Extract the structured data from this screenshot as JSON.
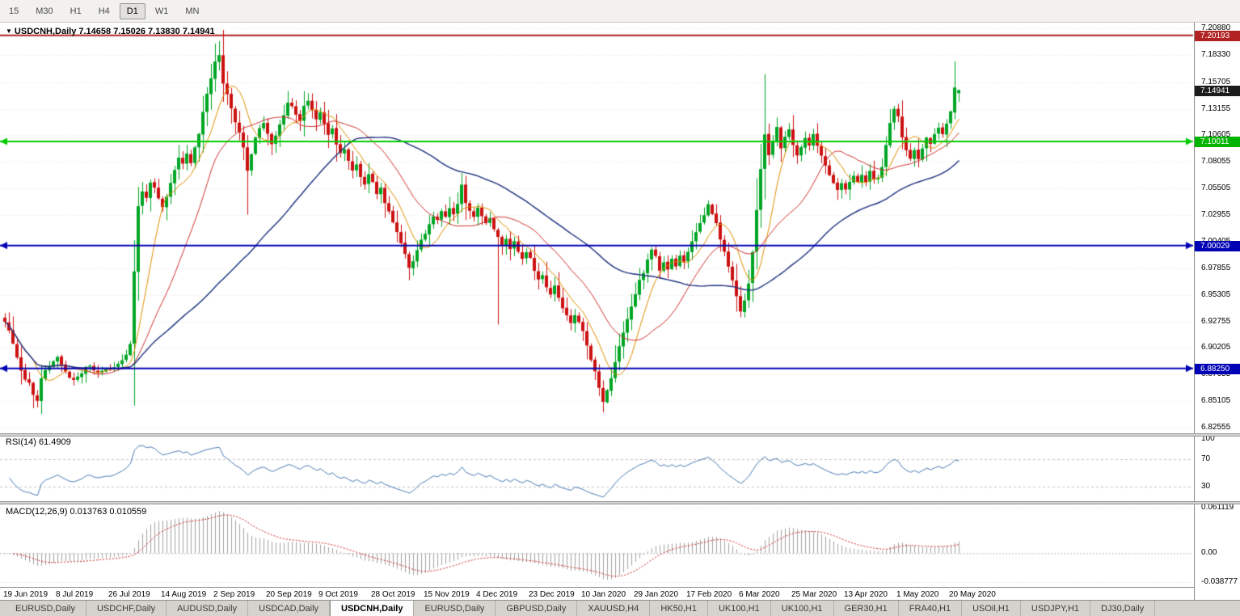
{
  "toolbar": {
    "timeframes": [
      {
        "label": "15",
        "active": false
      },
      {
        "label": "M30",
        "active": false
      },
      {
        "label": "H1",
        "active": false
      },
      {
        "label": "H4",
        "active": false
      },
      {
        "label": "D1",
        "active": true
      },
      {
        "label": "W1",
        "active": false
      },
      {
        "label": "MN",
        "active": false
      }
    ]
  },
  "chart": {
    "title": "USDCNH,Daily 7.14658 7.15026 7.13830 7.14941",
    "symbol": "USDCNH",
    "period": "Daily",
    "open": "7.14658",
    "high": "7.15026",
    "low": "7.13830",
    "close": "7.14941"
  },
  "price_scale": {
    "ticks": [
      "7.20880",
      "7.18330",
      "7.15705",
      "7.13155",
      "7.10605",
      "7.08055",
      "7.05505",
      "7.02955",
      "7.00405",
      "6.97855",
      "6.95305",
      "6.92755",
      "6.90205",
      "6.87655",
      "6.85105",
      "6.82555"
    ]
  },
  "badges": [
    {
      "text": "7.20193",
      "value": 7.20193,
      "color": "#b22222"
    },
    {
      "text": "7.14941",
      "value": 7.14941,
      "color": "#1c1c1c"
    },
    {
      "text": "7.10011",
      "value": 7.10011,
      "color": "#00b400"
    },
    {
      "text": "7.00029",
      "value": 7.00029,
      "color": "#0000b4"
    },
    {
      "text": "6.88250",
      "value": 6.8825,
      "color": "#0000b4"
    }
  ],
  "rsi": {
    "label": "RSI(14) 61.4909",
    "period": 14,
    "value": 61.4909,
    "line_color": "#4a7ab5",
    "scale": [
      {
        "text": "100",
        "value": 100
      },
      {
        "text": "70",
        "value": 70
      },
      {
        "text": "30",
        "value": 30
      }
    ]
  },
  "macd": {
    "label": "MACD(12,26,9) 0.013763 0.010559",
    "fast": 12,
    "slow": 26,
    "signal": 9,
    "macd_value": 0.013763,
    "signal_value": 0.010559,
    "hist_color": "#a2a2a2",
    "signal_color": "#cc2222",
    "scale": [
      {
        "text": "0.061119",
        "value": 0.061119
      },
      {
        "text": "0.00",
        "value": 0
      },
      {
        "text": "-0.038777",
        "value": -0.038777
      }
    ]
  },
  "time_axis": {
    "labels": [
      {
        "i": 0,
        "text": "19 Jun 2019"
      },
      {
        "i": 13,
        "text": "8 Jul 2019"
      },
      {
        "i": 26,
        "text": "26 Jul 2019"
      },
      {
        "i": 39,
        "text": "14 Aug 2019"
      },
      {
        "i": 52,
        "text": "2 Sep 2019"
      },
      {
        "i": 65,
        "text": "20 Sep 2019"
      },
      {
        "i": 78,
        "text": "9 Oct 2019"
      },
      {
        "i": 91,
        "text": "28 Oct 2019"
      },
      {
        "i": 104,
        "text": "15 Nov 2019"
      },
      {
        "i": 117,
        "text": "4 Dec 2019"
      },
      {
        "i": 130,
        "text": "23 Dec 2019"
      },
      {
        "i": 143,
        "text": "10 Jan 2020"
      },
      {
        "i": 156,
        "text": "29 Jan 2020"
      },
      {
        "i": 169,
        "text": "17 Feb 2020"
      },
      {
        "i": 182,
        "text": "6 Mar 2020"
      },
      {
        "i": 195,
        "text": "25 Mar 2020"
      },
      {
        "i": 208,
        "text": "13 Apr 2020"
      },
      {
        "i": 221,
        "text": "1 May 2020"
      },
      {
        "i": 234,
        "text": "20 May 2020"
      }
    ]
  },
  "tabs": [
    {
      "label": "EURUSD,Daily",
      "active": false
    },
    {
      "label": "USDCHF,Daily",
      "active": false
    },
    {
      "label": "AUDUSD,Daily",
      "active": false
    },
    {
      "label": "USDCAD,Daily",
      "active": false
    },
    {
      "label": "USDCNH,Daily",
      "active": true
    },
    {
      "label": "EURUSD,Daily",
      "active": false
    },
    {
      "label": "GBPUSD,Daily",
      "active": false
    },
    {
      "label": "XAUUSD,H4",
      "active": false
    },
    {
      "label": "HK50,H1",
      "active": false
    },
    {
      "label": "UK100,H1",
      "active": false
    },
    {
      "label": "UK100,H1",
      "active": false
    },
    {
      "label": "GER30,H1",
      "active": false
    },
    {
      "label": "FRA40,H1",
      "active": false
    },
    {
      "label": "USOil,H1",
      "active": false
    },
    {
      "label": "USDJPY,H1",
      "active": false
    },
    {
      "label": "DJ30,Daily",
      "active": false
    }
  ],
  "chart_data": {
    "type": "candlestick",
    "symbol": "USDCNH",
    "timeframe": "Daily",
    "count": 237,
    "y_range": [
      6.8225,
      7.2119
    ],
    "last_candle": {
      "open": 7.14658,
      "high": 7.15026,
      "low": 7.1383,
      "close": 7.14941
    },
    "up_color": "#00a524",
    "down_color": "#cc1111",
    "hlines": [
      {
        "value": 7.20193,
        "color": "#b22222",
        "arrows": false
      },
      {
        "value": 7.10011,
        "color": "#00cc00",
        "arrows": true
      },
      {
        "value": 7.00029,
        "color": "#0000b4",
        "arrows": true
      },
      {
        "value": 6.8825,
        "color": "#0000b4",
        "arrows": true
      }
    ],
    "moving_averages": [
      {
        "period": 8,
        "color": "#e09000"
      },
      {
        "period": 20,
        "color": "#d03030"
      },
      {
        "period": 55,
        "color": "#1c2f7e"
      }
    ],
    "close_anchors": [
      [
        0,
        6.928
      ],
      [
        1,
        6.918
      ],
      [
        2,
        6.906
      ],
      [
        3,
        6.893
      ],
      [
        4,
        6.88
      ],
      [
        5,
        6.872
      ],
      [
        6,
        6.868
      ],
      [
        7,
        6.858
      ],
      [
        8,
        6.852
      ],
      [
        9,
        6.873
      ],
      [
        10,
        6.88
      ],
      [
        11,
        6.885
      ],
      [
        12,
        6.89
      ],
      [
        13,
        6.893
      ],
      [
        14,
        6.886
      ],
      [
        15,
        6.879
      ],
      [
        16,
        6.874
      ],
      [
        17,
        6.871
      ],
      [
        18,
        6.875
      ],
      [
        19,
        6.878
      ],
      [
        20,
        6.883
      ],
      [
        21,
        6.885
      ],
      [
        22,
        6.88
      ],
      [
        23,
        6.878
      ],
      [
        24,
        6.88
      ],
      [
        25,
        6.882
      ],
      [
        26,
        6.881
      ],
      [
        27,
        6.884
      ],
      [
        28,
        6.887
      ],
      [
        29,
        6.89
      ],
      [
        30,
        6.895
      ],
      [
        31,
        6.905
      ],
      [
        32,
        6.975
      ],
      [
        33,
        7.038
      ],
      [
        34,
        7.052
      ],
      [
        35,
        7.046
      ],
      [
        36,
        7.06
      ],
      [
        37,
        7.056
      ],
      [
        38,
        7.046
      ],
      [
        39,
        7.038
      ],
      [
        40,
        7.048
      ],
      [
        41,
        7.06
      ],
      [
        42,
        7.072
      ],
      [
        43,
        7.084
      ],
      [
        44,
        7.078
      ],
      [
        45,
        7.088
      ],
      [
        46,
        7.08
      ],
      [
        47,
        7.094
      ],
      [
        48,
        7.108
      ],
      [
        49,
        7.128
      ],
      [
        50,
        7.146
      ],
      [
        51,
        7.16
      ],
      [
        52,
        7.176
      ],
      [
        53,
        7.184
      ],
      [
        54,
        7.156
      ],
      [
        55,
        7.146
      ],
      [
        56,
        7.132
      ],
      [
        57,
        7.118
      ],
      [
        58,
        7.108
      ],
      [
        59,
        7.094
      ],
      [
        60,
        7.072
      ],
      [
        61,
        7.088
      ],
      [
        62,
        7.104
      ],
      [
        63,
        7.112
      ],
      [
        64,
        7.118
      ],
      [
        65,
        7.108
      ],
      [
        66,
        7.098
      ],
      [
        67,
        7.106
      ],
      [
        68,
        7.116
      ],
      [
        69,
        7.126
      ],
      [
        70,
        7.138
      ],
      [
        71,
        7.134
      ],
      [
        72,
        7.126
      ],
      [
        73,
        7.12
      ],
      [
        74,
        7.134
      ],
      [
        75,
        7.14
      ],
      [
        76,
        7.13
      ],
      [
        77,
        7.122
      ],
      [
        78,
        7.128
      ],
      [
        79,
        7.117
      ],
      [
        80,
        7.106
      ],
      [
        81,
        7.112
      ],
      [
        82,
        7.098
      ],
      [
        83,
        7.089
      ],
      [
        84,
        7.093
      ],
      [
        85,
        7.081
      ],
      [
        86,
        7.073
      ],
      [
        87,
        7.079
      ],
      [
        88,
        7.066
      ],
      [
        89,
        7.059
      ],
      [
        90,
        7.068
      ],
      [
        91,
        7.061
      ],
      [
        92,
        7.049
      ],
      [
        93,
        7.056
      ],
      [
        94,
        7.041
      ],
      [
        95,
        7.033
      ],
      [
        96,
        7.023
      ],
      [
        97,
        7.013
      ],
      [
        98,
        7.003
      ],
      [
        99,
        6.993
      ],
      [
        100,
        6.979
      ],
      [
        101,
        6.986
      ],
      [
        102,
        6.996
      ],
      [
        103,
        7.006
      ],
      [
        104,
        7.012
      ],
      [
        105,
        7.021
      ],
      [
        106,
        7.029
      ],
      [
        107,
        7.024
      ],
      [
        108,
        7.034
      ],
      [
        109,
        7.027
      ],
      [
        110,
        7.037
      ],
      [
        111,
        7.031
      ],
      [
        112,
        7.041
      ],
      [
        113,
        7.058
      ],
      [
        114,
        7.041
      ],
      [
        115,
        7.034
      ],
      [
        116,
        7.027
      ],
      [
        117,
        7.037
      ],
      [
        118,
        7.029
      ],
      [
        119,
        7.021
      ],
      [
        120,
        7.027
      ],
      [
        121,
        7.017
      ],
      [
        122,
        7.009
      ],
      [
        123,
        7.001
      ],
      [
        124,
        7.007
      ],
      [
        125,
        6.997
      ],
      [
        126,
        7.004
      ],
      [
        127,
        6.994
      ],
      [
        128,
        6.987
      ],
      [
        129,
        6.994
      ],
      [
        130,
        6.989
      ],
      [
        131,
        6.977
      ],
      [
        132,
        6.967
      ],
      [
        133,
        6.971
      ],
      [
        134,
        6.961
      ],
      [
        135,
        6.954
      ],
      [
        136,
        6.961
      ],
      [
        137,
        6.951
      ],
      [
        138,
        6.941
      ],
      [
        139,
        6.934
      ],
      [
        140,
        6.927
      ],
      [
        141,
        6.934
      ],
      [
        142,
        6.927
      ],
      [
        143,
        6.919
      ],
      [
        144,
        6.904
      ],
      [
        145,
        6.891
      ],
      [
        146,
        6.879
      ],
      [
        147,
        6.864
      ],
      [
        148,
        6.851
      ],
      [
        149,
        6.861
      ],
      [
        150,
        6.874
      ],
      [
        151,
        6.889
      ],
      [
        152,
        6.904
      ],
      [
        153,
        6.917
      ],
      [
        154,
        6.929
      ],
      [
        155,
        6.941
      ],
      [
        156,
        6.954
      ],
      [
        157,
        6.967
      ],
      [
        158,
        6.974
      ],
      [
        159,
        6.987
      ],
      [
        160,
        6.997
      ],
      [
        161,
        6.991
      ],
      [
        162,
        6.977
      ],
      [
        163,
        6.984
      ],
      [
        164,
        6.977
      ],
      [
        165,
        6.987
      ],
      [
        166,
        6.981
      ],
      [
        167,
        6.991
      ],
      [
        168,
        6.984
      ],
      [
        169,
        6.994
      ],
      [
        170,
        7.004
      ],
      [
        171,
        7.014
      ],
      [
        172,
        7.021
      ],
      [
        173,
        7.029
      ],
      [
        174,
        7.039
      ],
      [
        175,
        7.031
      ],
      [
        176,
        7.021
      ],
      [
        177,
        7.007
      ],
      [
        178,
        6.994
      ],
      [
        179,
        6.981
      ],
      [
        180,
        6.967
      ],
      [
        181,
        6.951
      ],
      [
        182,
        6.937
      ],
      [
        183,
        6.947
      ],
      [
        184,
        6.964
      ],
      [
        185,
        6.994
      ],
      [
        186,
        7.034
      ],
      [
        187,
        7.074
      ],
      [
        188,
        7.107
      ],
      [
        189,
        7.087
      ],
      [
        190,
        7.101
      ],
      [
        191,
        7.114
      ],
      [
        192,
        7.094
      ],
      [
        193,
        7.104
      ],
      [
        194,
        7.111
      ],
      [
        195,
        7.097
      ],
      [
        196,
        7.087
      ],
      [
        197,
        7.094
      ],
      [
        198,
        7.104
      ],
      [
        199,
        7.097
      ],
      [
        200,
        7.107
      ],
      [
        201,
        7.097
      ],
      [
        202,
        7.087
      ],
      [
        203,
        7.077
      ],
      [
        204,
        7.067
      ],
      [
        205,
        7.061
      ],
      [
        206,
        7.054
      ],
      [
        207,
        7.061
      ],
      [
        208,
        7.054
      ],
      [
        209,
        7.061
      ],
      [
        210,
        7.067
      ],
      [
        211,
        7.061
      ],
      [
        212,
        7.069
      ],
      [
        213,
        7.061
      ],
      [
        214,
        7.071
      ],
      [
        215,
        7.064
      ],
      [
        216,
        7.066
      ],
      [
        217,
        7.076
      ],
      [
        218,
        7.096
      ],
      [
        219,
        7.118
      ],
      [
        220,
        7.131
      ],
      [
        221,
        7.124
      ],
      [
        222,
        7.104
      ],
      [
        223,
        7.091
      ],
      [
        224,
        7.084
      ],
      [
        225,
        7.091
      ],
      [
        226,
        7.084
      ],
      [
        227,
        7.094
      ],
      [
        228,
        7.104
      ],
      [
        229,
        7.097
      ],
      [
        230,
        7.107
      ],
      [
        231,
        7.114
      ],
      [
        232,
        7.107
      ],
      [
        233,
        7.117
      ],
      [
        234,
        7.129
      ],
      [
        235,
        7.152
      ],
      [
        236,
        7.14941
      ]
    ],
    "forced": [
      {
        "i": 8,
        "l": 6.845
      },
      {
        "i": 53,
        "h": 7.1965
      },
      {
        "i": 60,
        "l": 7.03
      },
      {
        "i": 113,
        "h": 7.07
      },
      {
        "i": 122,
        "l": 6.9245
      },
      {
        "i": 148,
        "l": 6.8403
      },
      {
        "i": 188,
        "h": 7.1648
      },
      {
        "i": 235,
        "o": 7.128,
        "h": 7.1772,
        "l": 7.1215,
        "c": 7.152
      },
      {
        "i": 236,
        "o": 7.14658,
        "h": 7.15026,
        "l": 7.1383,
        "c": 7.14941
      }
    ]
  }
}
